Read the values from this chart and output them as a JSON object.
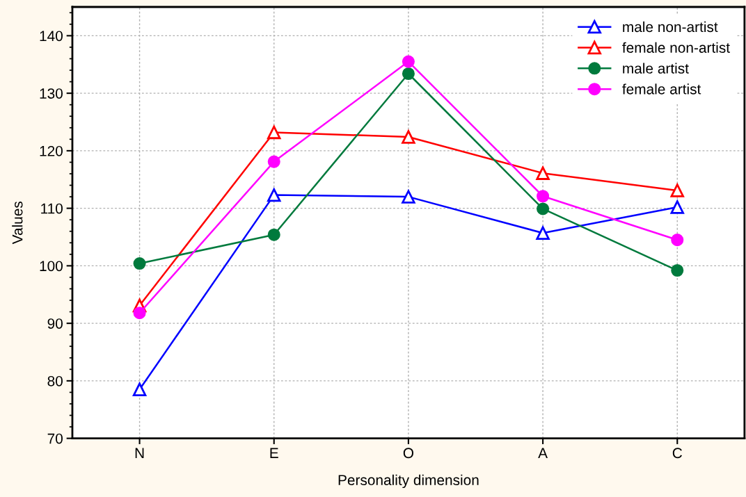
{
  "chart_data": {
    "type": "line",
    "xlabel": "Personality dimension",
    "ylabel": "Values",
    "categories": [
      "N",
      "E",
      "O",
      "A",
      "C"
    ],
    "series": [
      {
        "name": "male non-artist",
        "color": "#0000ff",
        "marker": "triangle",
        "values": [
          78.5,
          112.3,
          112.0,
          105.7,
          110.2
        ]
      },
      {
        "name": "female non-artist",
        "color": "#ff0000",
        "marker": "triangle",
        "values": [
          93.1,
          123.2,
          122.4,
          116.1,
          113.1
        ]
      },
      {
        "name": "male artist",
        "color": "#007a3d",
        "marker": "circle",
        "values": [
          100.4,
          105.4,
          133.4,
          109.9,
          99.2
        ]
      },
      {
        "name": "female artist",
        "color": "#ff00ff",
        "marker": "circle",
        "values": [
          91.8,
          118.1,
          135.5,
          112.1,
          104.5
        ]
      }
    ],
    "ylim": [
      70,
      145
    ],
    "yticks": [
      70,
      80,
      90,
      100,
      110,
      120,
      130,
      140
    ],
    "grid": true,
    "legend": "top right",
    "line_style": "solid"
  }
}
